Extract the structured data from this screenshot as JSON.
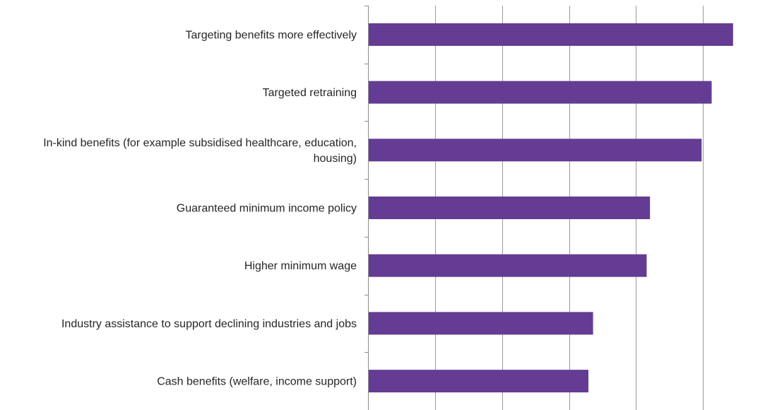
{
  "chart_data": {
    "type": "bar",
    "orientation": "horizontal",
    "categories": [
      "Targeting benefits more effectively",
      "Targeted retraining",
      "In-kind benefits (for example subsidised healthcare, education, housing)",
      "Guaranteed minimum income policy",
      "Higher minimum wage",
      "Industry assistance to support declining industries and jobs",
      "Cash benefits (welfare, income support)"
    ],
    "values": [
      54.5,
      51.3,
      49.8,
      42.1,
      41.6,
      33.6,
      32.9
    ],
    "xlim": [
      0,
      60
    ],
    "grid": true,
    "legend": "none",
    "colors": {
      "bar": "#643C93",
      "grid": "#9A9A9A",
      "axis": "#8C8C8C",
      "text": "#262626"
    }
  }
}
